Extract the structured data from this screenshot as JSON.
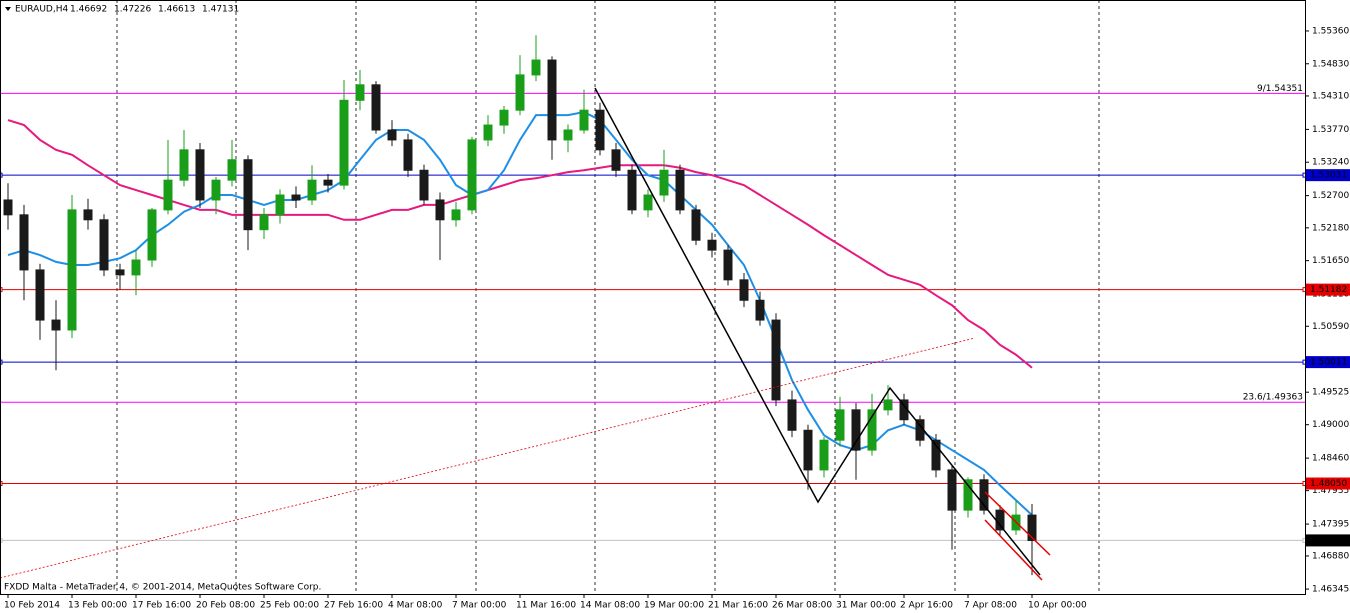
{
  "chart_data": {
    "type": "candlestick",
    "symbol": "EURAUD,H4",
    "ohlc": [
      1.46692,
      1.47226,
      1.46613,
      1.47131
    ],
    "footer": "FXDD Malta - MetaTrader 4, © 2001-2014, MetaQuotes Software Corp.",
    "categories": [
      "10 Feb 2014",
      null,
      null,
      null,
      "13 Feb 00:00",
      null,
      null,
      null,
      "17 Feb 16:00",
      null,
      null,
      null,
      "20 Feb 08:00",
      null,
      null,
      null,
      "25 Feb 00:00",
      null,
      null,
      null,
      "27 Feb 16:00",
      null,
      null,
      null,
      "4 Mar 08:00",
      null,
      null,
      null,
      "7 Mar 00:00",
      null,
      null,
      null,
      "11 Mar 16:00",
      null,
      null,
      null,
      "14 Mar 08:00",
      null,
      null,
      null,
      "19 Mar 00:00",
      null,
      null,
      null,
      "21 Mar 16:00",
      null,
      null,
      null,
      "26 Mar 08:00",
      null,
      null,
      null,
      "31 Mar 00:00",
      null,
      null,
      null,
      "2 Apr 16:00",
      null,
      null,
      null,
      "7 Apr 08:00",
      null,
      null,
      null,
      "10 Apr 00:00"
    ],
    "open": [
      1.5263,
      1.5239,
      1.515,
      1.5069,
      1.5053,
      1.5247,
      1.5231,
      1.515,
      1.5142,
      1.5166,
      1.5247,
      1.5295,
      1.5344,
      1.5263,
      1.5295,
      1.5328,
      1.5215,
      1.5239,
      1.5271,
      1.5263,
      1.5295,
      1.5287,
      1.5424,
      1.5449,
      1.5376,
      1.536,
      1.5311,
      1.5263,
      1.5231,
      1.5247,
      1.536,
      1.5384,
      1.5408,
      1.5465,
      1.5489,
      1.536,
      1.5376,
      1.5408,
      1.5344,
      1.5311,
      1.5247,
      1.5271,
      1.5311,
      1.5247,
      1.5198,
      1.5182,
      1.5134,
      1.5101,
      1.5069,
      1.494,
      1.4891,
      1.4827,
      1.4875,
      1.4924,
      1.4859,
      1.4924,
      1.494,
      1.4908,
      1.4875,
      1.4827,
      1.4762,
      1.4811,
      1.4762,
      1.473,
      1.4754
    ],
    "high": [
      1.529,
      1.5255,
      1.516,
      1.5101,
      1.5271,
      1.5265,
      1.524,
      1.516,
      1.5182,
      1.525,
      1.536,
      1.5376,
      1.5355,
      1.53,
      1.536,
      1.5335,
      1.525,
      1.528,
      1.5285,
      1.5319,
      1.5305,
      1.5457,
      1.5473,
      1.5455,
      1.5392,
      1.537,
      1.532,
      1.5275,
      1.526,
      1.5365,
      1.54,
      1.5415,
      1.5497,
      1.5529,
      1.5495,
      1.5385,
      1.5441,
      1.542,
      1.5355,
      1.532,
      1.528,
      1.5344,
      1.532,
      1.5255,
      1.521,
      1.519,
      1.5145,
      1.5115,
      1.508,
      1.4955,
      1.49,
      1.488,
      1.4945,
      1.4935,
      1.495,
      1.4964,
      1.495,
      1.4915,
      1.4885,
      1.4835,
      1.4815,
      1.482,
      1.477,
      1.4778,
      1.4772
    ],
    "low": [
      1.5215,
      1.5101,
      1.5037,
      1.4988,
      1.504,
      1.5215,
      1.514,
      1.5118,
      1.5109,
      1.5155,
      1.524,
      1.5285,
      1.525,
      1.524,
      1.5285,
      1.5182,
      1.52,
      1.5225,
      1.525,
      1.5255,
      1.5275,
      1.528,
      1.5408,
      1.537,
      1.535,
      1.53,
      1.5255,
      1.5166,
      1.522,
      1.524,
      1.535,
      1.537,
      1.54,
      1.5455,
      1.5328,
      1.534,
      1.537,
      1.5335,
      1.53,
      1.524,
      1.5235,
      1.526,
      1.524,
      1.519,
      1.517,
      1.5125,
      1.509,
      1.506,
      1.493,
      1.488,
      1.4795,
      1.4815,
      1.4865,
      1.4811,
      1.485,
      1.4915,
      1.49,
      1.4865,
      1.4815,
      1.4698,
      1.475,
      1.4755,
      1.472,
      1.4722,
      1.4657
    ],
    "close": [
      1.5239,
      1.515,
      1.5069,
      1.5053,
      1.5247,
      1.5231,
      1.515,
      1.5142,
      1.5166,
      1.5247,
      1.5295,
      1.5344,
      1.5263,
      1.5295,
      1.5328,
      1.5215,
      1.5239,
      1.5271,
      1.5263,
      1.5295,
      1.5287,
      1.5424,
      1.5449,
      1.5376,
      1.536,
      1.5311,
      1.5263,
      1.5231,
      1.5247,
      1.536,
      1.5384,
      1.5408,
      1.5465,
      1.5489,
      1.536,
      1.5376,
      1.5408,
      1.5344,
      1.5311,
      1.5247,
      1.5271,
      1.5311,
      1.5247,
      1.5198,
      1.5182,
      1.5134,
      1.5101,
      1.5069,
      1.494,
      1.4891,
      1.4827,
      1.4875,
      1.4924,
      1.4859,
      1.4924,
      1.494,
      1.4908,
      1.4875,
      1.4827,
      1.4762,
      1.4811,
      1.4762,
      1.473,
      1.4754,
      1.4713
    ],
    "up_color": "#1a9e1a",
    "down_color": "#1a1a1a",
    "lines": [
      {
        "color": "#e6197f",
        "values": [
          1.5392,
          1.5384,
          1.536,
          1.5344,
          1.5336,
          1.5319,
          1.5303,
          1.5287,
          1.5279,
          1.5271,
          1.5263,
          1.5255,
          1.5247,
          1.5247,
          1.5239,
          1.5239,
          1.5239,
          1.5239,
          1.5239,
          1.5239,
          1.5239,
          1.5231,
          1.5231,
          1.5239,
          1.5247,
          1.5247,
          1.5255,
          1.5255,
          1.5263,
          1.5271,
          1.5279,
          1.5287,
          1.5295,
          1.5298,
          1.5303,
          1.5308,
          1.5311,
          1.5315,
          1.5319,
          1.5319,
          1.5319,
          1.5319,
          1.5315,
          1.5308,
          1.5303,
          1.5295,
          1.5287,
          1.5271,
          1.5255,
          1.5239,
          1.5223,
          1.5206,
          1.519,
          1.5174,
          1.5158,
          1.5142,
          1.5134,
          1.5126,
          1.5109,
          1.5093,
          1.5069,
          1.5053,
          1.5029,
          1.5013,
          1.4992
        ]
      },
      {
        "color": "#1e8fe6",
        "values": [
          1.5174,
          1.5182,
          1.5174,
          1.5163,
          1.5158,
          1.5158,
          1.5163,
          1.5169,
          1.5182,
          1.5206,
          1.5223,
          1.5244,
          1.5255,
          1.5271,
          1.5271,
          1.5263,
          1.5255,
          1.5263,
          1.5263,
          1.5271,
          1.5279,
          1.5295,
          1.5328,
          1.536,
          1.5376,
          1.5376,
          1.536,
          1.5328,
          1.5287,
          1.5271,
          1.5279,
          1.5311,
          1.536,
          1.54,
          1.54,
          1.54,
          1.5405,
          1.5392,
          1.536,
          1.5328,
          1.5303,
          1.5295,
          1.5271,
          1.5247,
          1.5223,
          1.519,
          1.5158,
          1.5101,
          1.5037,
          1.4972,
          1.4924,
          1.4883,
          1.4867,
          1.4859,
          1.4867,
          1.4891,
          1.49,
          1.4891,
          1.4875,
          1.4859,
          1.4843,
          1.4827,
          1.4802,
          1.4778,
          1.4754
        ]
      }
    ],
    "levels": [
      {
        "value": 1.54351,
        "color": "#ff00ff",
        "text": "9/1.54351"
      },
      {
        "value": 1.53031,
        "color": "#0000cc",
        "label": "1.53031"
      },
      {
        "value": 1.51182,
        "color": "#e60000",
        "label": "1.51182"
      },
      {
        "value": 1.50011,
        "color": "#0000cc",
        "label": "1.50011"
      },
      {
        "value": 1.49363,
        "color": "#ff00ff",
        "text": "23.6/1.49363"
      },
      {
        "value": 1.4805,
        "color": "#e60000",
        "label": "1.48050"
      },
      {
        "value": 1.47131,
        "color": "#c0c0c0",
        "label": "1.47131"
      }
    ],
    "ylim": [
      1.4633,
      1.5586
    ],
    "yticks": [
      {
        "value": 1.5536,
        "label": "1.55360"
      },
      {
        "value": 1.5483,
        "label": "1.54830"
      },
      {
        "value": 1.5431,
        "label": "1.54310"
      },
      {
        "value": 1.5377,
        "label": "1.53770"
      },
      {
        "value": 1.5324,
        "label": "1.53240"
      },
      {
        "value": 1.527,
        "label": "1.52700"
      },
      {
        "value": 1.5218,
        "label": "1.52180"
      },
      {
        "value": 1.5165,
        "label": "1.51650"
      },
      {
        "value": 1.5111,
        "label": "1.51110"
      },
      {
        "value": 1.5059,
        "label": "1.50590"
      },
      1.49525,
      {
        "value": 1.49,
        "label": "1.49000"
      },
      {
        "value": 1.4846,
        "label": "1.48460"
      },
      1.47935,
      1.47395,
      {
        "value": 1.4688,
        "label": "1.46880"
      },
      1.46345
    ]
  }
}
